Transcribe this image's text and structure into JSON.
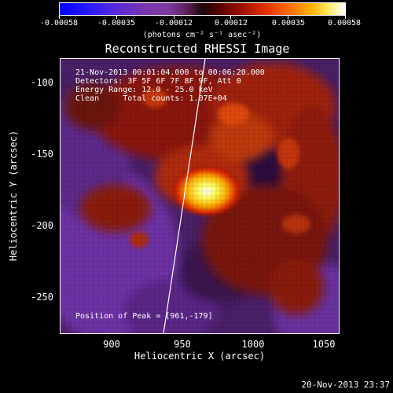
{
  "colorbar": {
    "ticks": [
      "-0.00058",
      "-0.00035",
      "-0.00012",
      "0.00012",
      "0.00035",
      "0.00058"
    ],
    "units": "(photons cm⁻² s⁻¹ asec⁻²)"
  },
  "title": "Reconstructed RHESSI Image",
  "info": {
    "line1": "21-Nov-2013 00:01:04.000 to 00:06:20.000",
    "line2": "Detectors: 3F 5F 6F 7F 8F 9F, Att 0",
    "line3": "Energy Range: 12.0 - 25.0 keV",
    "line4": "Clean     Total counts: 1.07E+04",
    "peak": "Position of Peak = [961,-179]"
  },
  "axes": {
    "xlabel": "Heliocentric X (arcsec)",
    "ylabel": "Heliocentric Y (arcsec)",
    "xticks": [
      "900",
      "950",
      "1000",
      "1050"
    ],
    "yticks": [
      "-100",
      "-150",
      "-200",
      "-250"
    ]
  },
  "timestamp": "20-Nov-2013 23:37",
  "colors": {
    "background": "#000000",
    "negative_low": "#0000ff",
    "negative_mid": "#7a35b0",
    "positive_mid": "#e03000",
    "positive_high": "#ffffff"
  }
}
